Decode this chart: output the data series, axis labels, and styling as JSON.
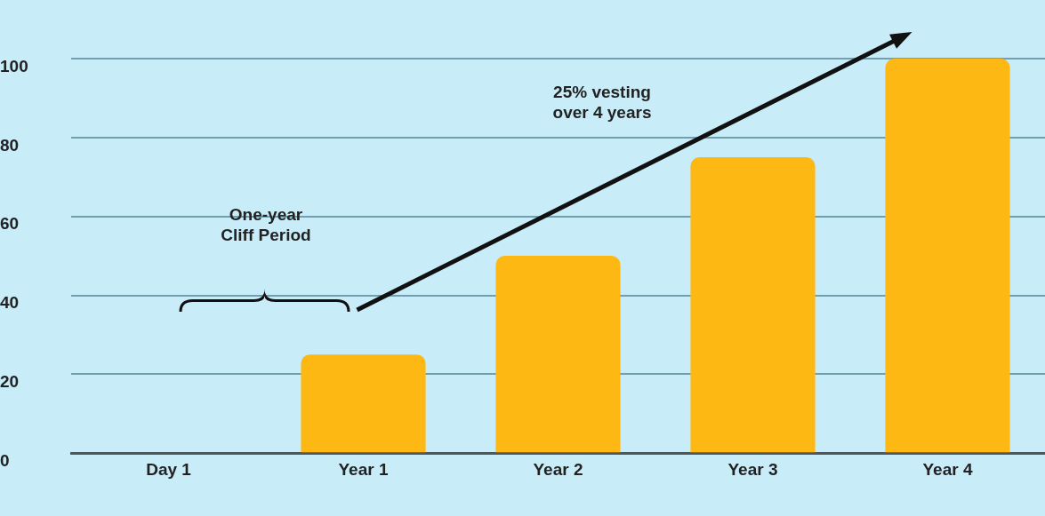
{
  "chart_data": {
    "type": "bar",
    "categories": [
      "Day 1",
      "Year 1",
      "Year 2",
      "Year 3",
      "Year 4"
    ],
    "values": [
      0,
      25,
      50,
      75,
      100
    ],
    "color": "#fdb813",
    "ylim": [
      0,
      100
    ],
    "yticks": [
      0,
      20,
      40,
      60,
      80,
      100
    ],
    "grid": "y",
    "annotations": [
      "One-year\nCliff Period",
      "25% vesting\nover 4 years"
    ]
  }
}
